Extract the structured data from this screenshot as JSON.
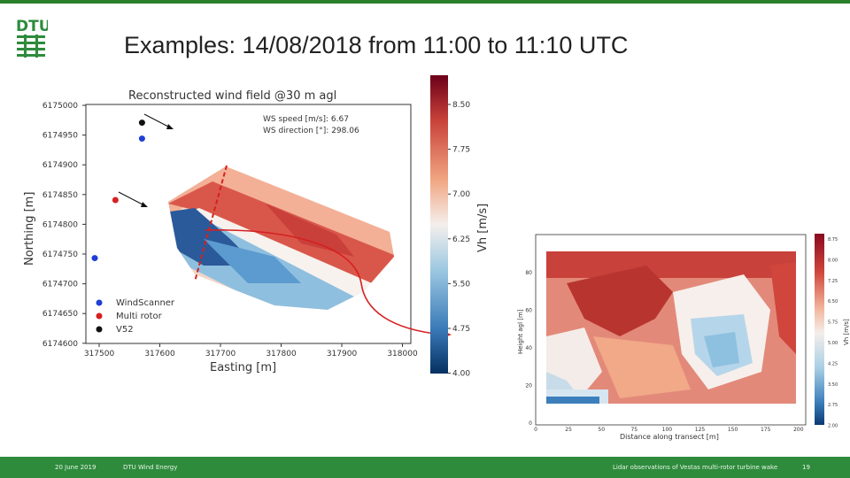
{
  "slide": {
    "title": "Examples: 14/08/2018 from 11:00 to 11:10 UTC",
    "logo_text": "DTU",
    "footer": {
      "date": "20 June 2019",
      "department": "DTU Wind Energy",
      "subject": "Lidar observations of Vestas multi-rotor turbine wake",
      "page": "19"
    }
  },
  "colors": {
    "brand_green": "#2e8b3c",
    "brand_red": "#c8102e"
  },
  "left_chart": {
    "title": "Reconstructed wind field @30 m agl",
    "xlabel": "Easting [m]",
    "ylabel": "Northing [m]",
    "x_ticks": [
      "317500",
      "317600",
      "317700",
      "317800",
      "317900",
      "318000"
    ],
    "y_ticks": [
      "6175000",
      "6174950",
      "6174900",
      "6174850",
      "6174800",
      "6174750",
      "6174700",
      "6174650",
      "6174600"
    ],
    "ws_speed": "WS speed [m/s]: 6.67",
    "ws_direction": "WS direction [°]: 298.06",
    "legend": [
      "WindScanner",
      "Multi rotor",
      "V52"
    ],
    "colorbar_label": "Vh [m/s]",
    "colorbar_ticks": [
      "8.50",
      "7.75",
      "7.00",
      "6.25",
      "5.50",
      "4.75",
      "4.00"
    ]
  },
  "right_chart": {
    "xlabel": "Distance along transect [m]",
    "ylabel": "Height agl [m]",
    "x_ticks": [
      "0",
      "25",
      "50",
      "75",
      "100",
      "125",
      "150",
      "175",
      "200"
    ],
    "y_ticks": [
      "0",
      "20",
      "40",
      "60",
      "80"
    ],
    "colorbar_label": "Vh [m/s]",
    "colorbar_ticks": [
      "8.75",
      "8.00",
      "7.25",
      "6.50",
      "5.75",
      "5.00",
      "4.25",
      "3.50",
      "2.75",
      "2.00"
    ]
  },
  "chart_data": [
    {
      "type": "heatmap",
      "title": "Reconstructed wind field @30 m agl",
      "xlabel": "Easting [m]",
      "ylabel": "Northing [m]",
      "xlim": [
        317450,
        318000
      ],
      "ylim": [
        6174600,
        6175020
      ],
      "value_range": [
        4.0,
        8.9
      ],
      "points": [
        {
          "name": "WindScanner",
          "x": 317545,
          "y": 6174960,
          "color": "#1f3fd6"
        },
        {
          "name": "WindScanner",
          "x": 317465,
          "y": 6174750,
          "color": "#1f3fd6"
        },
        {
          "name": "Multi rotor",
          "x": 317500,
          "y": 6174852,
          "color": "#d62020"
        },
        {
          "name": "V52",
          "x": 317545,
          "y": 6174988,
          "color": "#111111"
        }
      ]
    },
    {
      "type": "heatmap",
      "xlabel": "Distance along transect [m]",
      "ylabel": "Height agl [m]",
      "xlim": [
        0,
        200
      ],
      "ylim": [
        0,
        90
      ],
      "value_range": [
        2.0,
        8.75
      ]
    }
  ]
}
